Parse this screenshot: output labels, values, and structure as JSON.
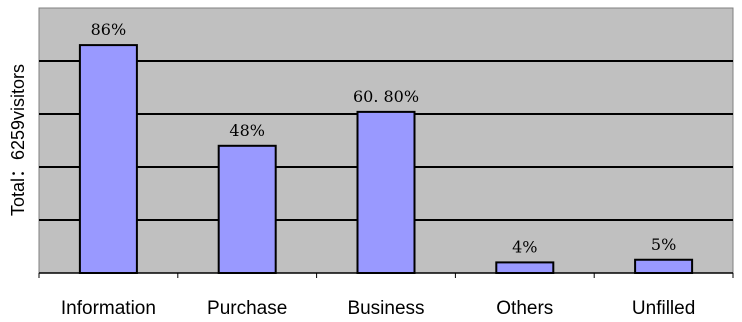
{
  "chart_data": {
    "type": "bar",
    "ylabel": "Total：6259visitors",
    "categories": [
      "Information",
      "Purchase",
      "Business",
      "Others",
      "Unfilled"
    ],
    "values": [
      86,
      48,
      60.8,
      4,
      5
    ],
    "value_labels": [
      "86%",
      "48%",
      "60. 80%",
      "4%",
      "5%"
    ],
    "ylim": [
      0,
      100
    ],
    "gridlines": [
      20,
      40,
      60,
      80
    ],
    "grid": true,
    "legend": "none",
    "colors": {
      "bar": "#9999ff",
      "plot_background": "#c0c0c0",
      "grid": "#000000"
    }
  }
}
